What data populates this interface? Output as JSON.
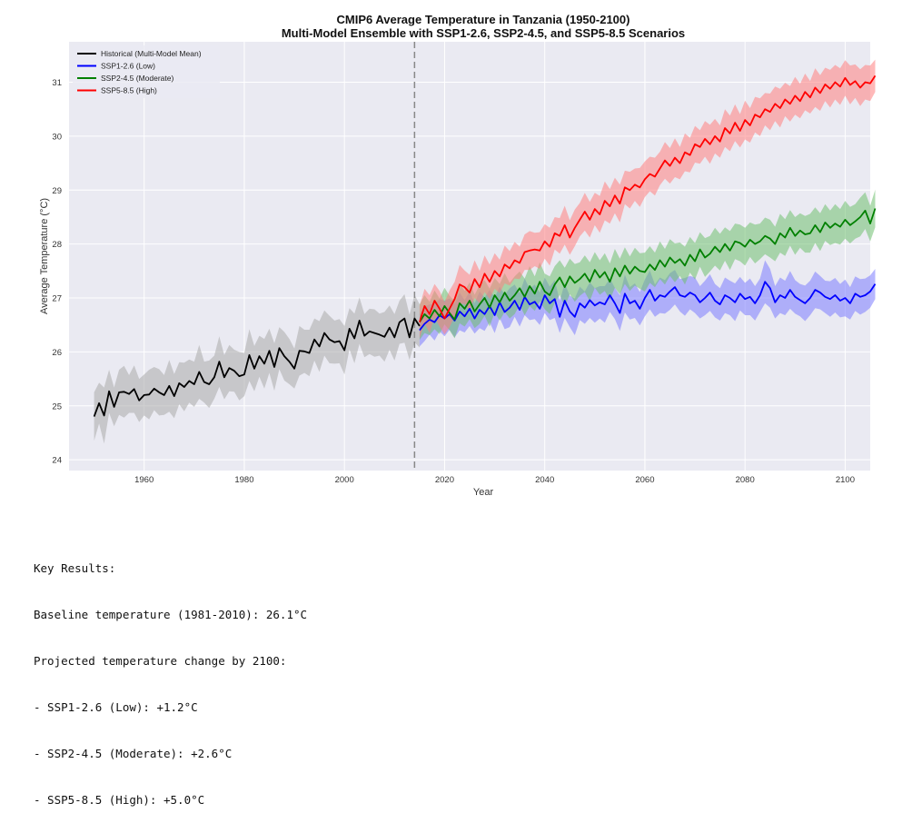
{
  "chart_data": {
    "type": "line",
    "title": "CMIP6 Average Temperature in Tanzania (1950-2100)",
    "subtitle": "Multi-Model Ensemble with SSP1-2.6, SSP2-4.5, and SSP5-8.5 Scenarios",
    "xlabel": "Year",
    "ylabel": "Average Temperature (°C)",
    "xlim": [
      1945,
      2105
    ],
    "ylim": [
      23.8,
      31.75
    ],
    "xticks": [
      1960,
      1980,
      2000,
      2020,
      2040,
      2060,
      2080,
      2100
    ],
    "yticks": [
      24,
      25,
      26,
      27,
      28,
      29,
      30,
      31
    ],
    "grid": true,
    "legend_position": "top-left",
    "vline_year": 2014,
    "series": [
      {
        "name": "Historical (Multi-Model Mean)",
        "color": "#000000",
        "band_color": "#a9a9a9",
        "x_start": 1950,
        "values": [
          24.8,
          25.05,
          24.82,
          25.27,
          24.98,
          25.25,
          25.26,
          25.22,
          25.31,
          25.1,
          25.2,
          25.21,
          25.32,
          25.25,
          25.2,
          25.37,
          25.18,
          25.42,
          25.35,
          25.46,
          25.4,
          25.63,
          25.44,
          25.4,
          25.53,
          25.82,
          25.53,
          25.7,
          25.65,
          25.55,
          25.58,
          25.94,
          25.69,
          25.92,
          25.78,
          26.02,
          25.72,
          26.07,
          25.92,
          25.82,
          25.69,
          26.02,
          26.01,
          25.98,
          26.23,
          26.1,
          26.35,
          26.23,
          26.18,
          26.2,
          26.03,
          26.43,
          26.25,
          26.58,
          26.3,
          26.38,
          26.35,
          26.32,
          26.28,
          26.45,
          26.27,
          26.55,
          26.62,
          26.27,
          26.62,
          26.48
        ],
        "band_halfwidth": [
          0.45,
          0.38,
          0.52,
          0.4,
          0.36,
          0.42,
          0.48,
          0.35,
          0.44,
          0.4,
          0.38,
          0.46,
          0.4,
          0.43,
          0.37,
          0.48,
          0.41,
          0.39,
          0.45,
          0.4,
          0.42,
          0.5,
          0.38,
          0.44,
          0.4,
          0.47,
          0.41,
          0.43,
          0.39,
          0.45,
          0.4,
          0.48,
          0.42,
          0.38,
          0.46,
          0.41,
          0.44,
          0.39,
          0.45,
          0.42,
          0.37,
          0.46,
          0.4,
          0.43,
          0.39,
          0.47,
          0.42,
          0.44,
          0.4,
          0.41,
          0.45,
          0.38,
          0.46,
          0.43,
          0.4,
          0.42,
          0.44,
          0.39,
          0.46,
          0.41,
          0.43,
          0.4,
          0.45,
          0.42,
          0.44,
          0.4
        ]
      },
      {
        "name": "SSP1-2.6 (Low)",
        "color": "#0000ff",
        "band_color": "#7b7bff",
        "x_start": 2015,
        "values": [
          26.4,
          26.52,
          26.6,
          26.55,
          26.68,
          26.62,
          26.7,
          26.58,
          26.75,
          26.66,
          26.8,
          26.62,
          26.78,
          26.7,
          26.85,
          26.68,
          26.92,
          26.74,
          26.82,
          26.95,
          26.78,
          27.02,
          26.88,
          26.93,
          26.8,
          27.05,
          26.9,
          26.98,
          26.65,
          26.95,
          26.75,
          26.65,
          26.9,
          26.82,
          26.96,
          26.86,
          26.92,
          26.88,
          27.05,
          26.9,
          26.72,
          27.08,
          26.9,
          26.95,
          26.8,
          27.0,
          27.15,
          26.95,
          27.05,
          27.02,
          27.12,
          27.2,
          27.05,
          27.02,
          27.1,
          27.05,
          26.92,
          27.0,
          27.1,
          26.95,
          26.88,
          27.05,
          27.0,
          26.92,
          27.08,
          26.98,
          27.02,
          26.9,
          27.05,
          27.3,
          27.18,
          26.92,
          27.05,
          27.0,
          27.15,
          27.02,
          26.96,
          26.9,
          27.0,
          27.15,
          27.1,
          27.02,
          26.98,
          27.05,
          26.95,
          27.0,
          26.9,
          27.08,
          27.02,
          27.05,
          27.12,
          27.26
        ],
        "band_halfwidth": [
          0.3,
          0.32,
          0.28,
          0.34,
          0.3,
          0.33,
          0.29,
          0.31,
          0.35,
          0.3,
          0.32,
          0.28,
          0.34,
          0.31,
          0.3,
          0.33,
          0.29,
          0.32,
          0.36,
          0.3,
          0.31,
          0.34,
          0.29,
          0.32,
          0.3,
          0.33,
          0.31,
          0.35,
          0.3,
          0.32,
          0.29,
          0.34,
          0.31,
          0.3,
          0.33,
          0.32,
          0.3,
          0.34,
          0.31,
          0.29,
          0.33,
          0.35,
          0.3,
          0.32,
          0.31,
          0.34,
          0.36,
          0.3,
          0.33,
          0.31,
          0.34,
          0.32,
          0.3,
          0.35,
          0.31,
          0.33,
          0.3,
          0.32,
          0.34,
          0.31,
          0.3,
          0.33,
          0.32,
          0.35,
          0.31,
          0.3,
          0.34,
          0.32,
          0.31,
          0.4,
          0.36,
          0.3,
          0.33,
          0.32,
          0.35,
          0.31,
          0.3,
          0.33,
          0.32,
          0.34,
          0.31,
          0.3,
          0.33,
          0.32,
          0.31,
          0.34,
          0.3,
          0.32,
          0.33,
          0.31,
          0.3,
          0.28
        ]
      },
      {
        "name": "SSP2-4.5 (Moderate)",
        "color": "#008000",
        "band_color": "#6fbf6f",
        "x_start": 2015,
        "values": [
          26.55,
          26.7,
          26.62,
          26.78,
          26.66,
          26.85,
          26.72,
          26.6,
          26.9,
          26.8,
          26.95,
          26.75,
          26.88,
          27.0,
          26.82,
          27.05,
          26.92,
          27.1,
          26.95,
          27.05,
          27.18,
          27.02,
          27.22,
          27.08,
          27.3,
          27.12,
          27.05,
          27.25,
          27.38,
          27.2,
          27.4,
          27.28,
          27.35,
          27.45,
          27.3,
          27.52,
          27.38,
          27.48,
          27.3,
          27.55,
          27.4,
          27.6,
          27.45,
          27.58,
          27.5,
          27.48,
          27.62,
          27.52,
          27.7,
          27.58,
          27.75,
          27.65,
          27.72,
          27.6,
          27.8,
          27.68,
          27.9,
          27.75,
          27.82,
          27.95,
          27.85,
          28.0,
          27.88,
          28.05,
          28.02,
          27.95,
          28.08,
          28.0,
          28.05,
          28.15,
          28.1,
          28.0,
          28.2,
          28.12,
          28.3,
          28.15,
          28.25,
          28.18,
          28.2,
          28.35,
          28.22,
          28.4,
          28.3,
          28.38,
          28.32,
          28.45,
          28.35,
          28.42,
          28.5,
          28.62,
          28.38,
          28.66
        ],
        "band_halfwidth": [
          0.33,
          0.35,
          0.31,
          0.36,
          0.33,
          0.34,
          0.32,
          0.35,
          0.37,
          0.33,
          0.34,
          0.31,
          0.36,
          0.33,
          0.35,
          0.32,
          0.34,
          0.36,
          0.33,
          0.35,
          0.31,
          0.34,
          0.37,
          0.32,
          0.36,
          0.33,
          0.35,
          0.34,
          0.32,
          0.36,
          0.33,
          0.35,
          0.31,
          0.34,
          0.36,
          0.33,
          0.32,
          0.35,
          0.34,
          0.36,
          0.33,
          0.34,
          0.32,
          0.35,
          0.33,
          0.36,
          0.34,
          0.32,
          0.35,
          0.33,
          0.34,
          0.36,
          0.31,
          0.35,
          0.33,
          0.34,
          0.32,
          0.36,
          0.33,
          0.35,
          0.34,
          0.31,
          0.36,
          0.33,
          0.34,
          0.35,
          0.32,
          0.36,
          0.33,
          0.34,
          0.35,
          0.32,
          0.36,
          0.34,
          0.33,
          0.35,
          0.32,
          0.34,
          0.36,
          0.33,
          0.35,
          0.34,
          0.32,
          0.36,
          0.33,
          0.35,
          0.34,
          0.32,
          0.36,
          0.34,
          0.33,
          0.35
        ]
      },
      {
        "name": "SSP5-8.5 (High)",
        "color": "#ff0000",
        "band_color": "#ff7f7f",
        "x_start": 2015,
        "values": [
          26.55,
          26.85,
          26.7,
          26.95,
          26.8,
          26.62,
          26.8,
          26.98,
          27.25,
          27.2,
          27.1,
          27.35,
          27.2,
          27.45,
          27.3,
          27.5,
          27.4,
          27.62,
          27.55,
          27.7,
          27.65,
          27.85,
          27.88,
          27.9,
          27.88,
          28.05,
          27.95,
          28.2,
          28.15,
          28.35,
          28.12,
          28.3,
          28.45,
          28.6,
          28.45,
          28.65,
          28.55,
          28.8,
          28.7,
          28.9,
          28.75,
          29.05,
          29.0,
          29.1,
          29.05,
          29.2,
          29.3,
          29.25,
          29.4,
          29.55,
          29.45,
          29.6,
          29.5,
          29.7,
          29.65,
          29.85,
          29.8,
          29.95,
          29.85,
          30.0,
          29.9,
          30.15,
          30.05,
          30.25,
          30.1,
          30.3,
          30.2,
          30.4,
          30.35,
          30.5,
          30.45,
          30.6,
          30.52,
          30.68,
          30.6,
          30.75,
          30.65,
          30.82,
          30.72,
          30.9,
          30.8,
          30.96,
          30.88,
          31.0,
          30.92,
          31.08,
          30.95,
          31.02,
          30.9,
          31.0,
          30.98,
          31.12
        ],
        "band_halfwidth": [
          0.3,
          0.32,
          0.35,
          0.31,
          0.33,
          0.3,
          0.34,
          0.32,
          0.36,
          0.31,
          0.33,
          0.35,
          0.3,
          0.34,
          0.32,
          0.33,
          0.31,
          0.35,
          0.32,
          0.34,
          0.3,
          0.33,
          0.36,
          0.31,
          0.34,
          0.32,
          0.35,
          0.3,
          0.33,
          0.36,
          0.32,
          0.34,
          0.31,
          0.35,
          0.33,
          0.3,
          0.34,
          0.36,
          0.32,
          0.33,
          0.35,
          0.31,
          0.34,
          0.3,
          0.36,
          0.33,
          0.32,
          0.35,
          0.31,
          0.34,
          0.33,
          0.36,
          0.3,
          0.35,
          0.32,
          0.34,
          0.31,
          0.33,
          0.36,
          0.32,
          0.3,
          0.35,
          0.33,
          0.34,
          0.31,
          0.36,
          0.32,
          0.33,
          0.35,
          0.3,
          0.34,
          0.32,
          0.36,
          0.31,
          0.33,
          0.35,
          0.32,
          0.34,
          0.3,
          0.36,
          0.33,
          0.31,
          0.35,
          0.32,
          0.34,
          0.33,
          0.36,
          0.31,
          0.34,
          0.32,
          0.33,
          0.3
        ]
      }
    ]
  },
  "results": {
    "heading": "Key Results:",
    "baseline": "Baseline temperature (1981-2010): 26.1°C",
    "projection_heading": "Projected temperature change by 2100:",
    "ssp126": "- SSP1-2.6 (Low): +1.2°C",
    "ssp245": "- SSP2-4.5 (Moderate): +2.6°C",
    "ssp585": "- SSP5-8.5 (High): +5.0°C"
  }
}
